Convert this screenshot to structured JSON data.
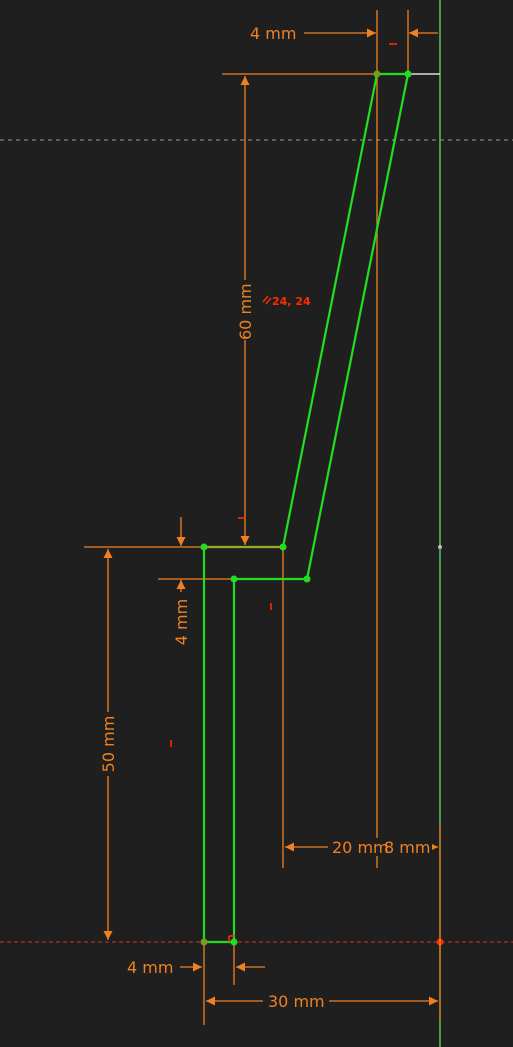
{
  "sketch": {
    "dimensions": {
      "top_width": "4 mm",
      "upper_height": "60 mm",
      "step_thickness": "4 mm",
      "lower_height": "50 mm",
      "offset_20": "20 mm",
      "offset_8": "8 mm",
      "bottom_width": "4 mm",
      "total_width": "30 mm"
    },
    "constraints": {
      "parallel_label": "24, 24"
    },
    "colors": {
      "background": "#1f1f1f",
      "geometry": "#22dd22",
      "dimension": "#f08020",
      "constraint": "#ff2a00",
      "axis_vertical": "#66ee66",
      "axis_horizontal": "#cc3333",
      "construction": "#9a9a9a"
    }
  }
}
